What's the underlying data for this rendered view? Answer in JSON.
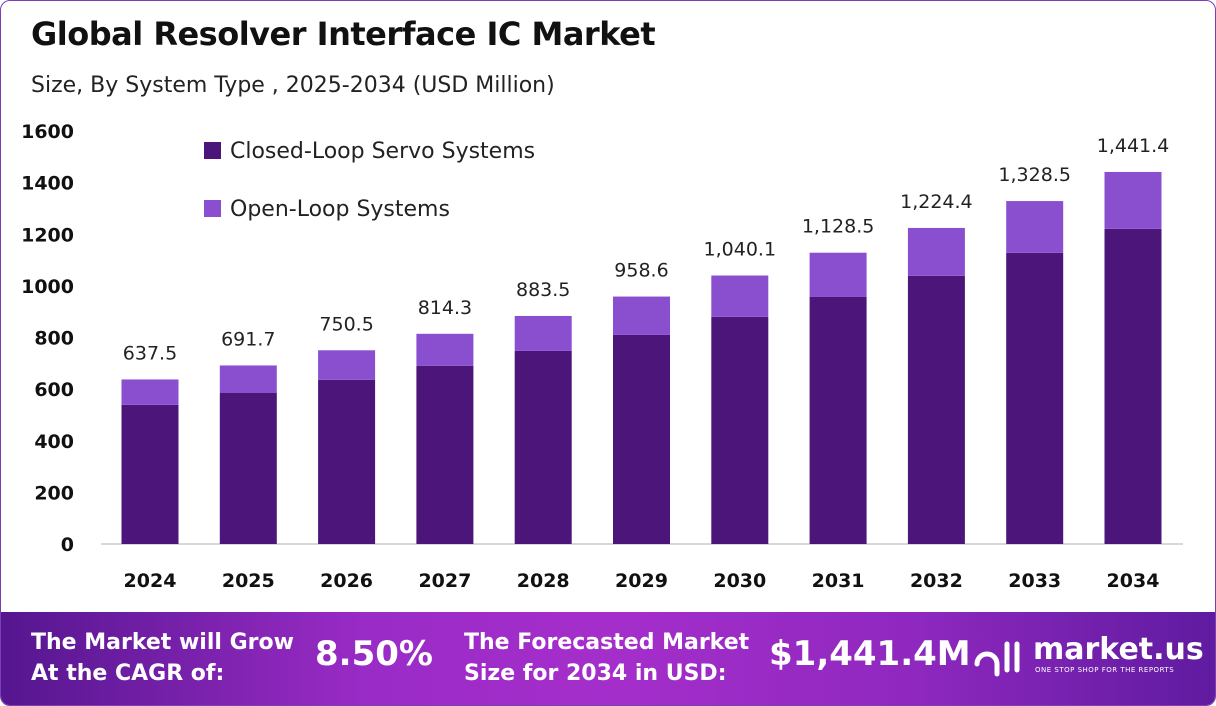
{
  "chart_data": {
    "type": "bar",
    "stacked": true,
    "title": "Global Resolver Interface IC Market",
    "subtitle": "Size, By System Type , 2025-2034 (USD Million)",
    "categories": [
      "2024",
      "2025",
      "2026",
      "2027",
      "2028",
      "2029",
      "2030",
      "2031",
      "2032",
      "2033",
      "2034"
    ],
    "series": [
      {
        "name": "Closed-Loop Servo Systems",
        "color": "#4b1579",
        "values": [
          539,
          585,
          636,
          690,
          748,
          810,
          880,
          957,
          1039,
          1128,
          1221
        ]
      },
      {
        "name": "Open-Loop Systems",
        "color": "#8a4fcf",
        "values": [
          98.5,
          106.7,
          114.5,
          124.3,
          135.5,
          148.6,
          160.1,
          171.5,
          185.4,
          200.5,
          220.4
        ]
      }
    ],
    "totals": [
      637.5,
      691.7,
      750.5,
      814.3,
      883.5,
      958.6,
      1040.1,
      1128.5,
      1224.4,
      1328.5,
      1441.4
    ],
    "total_labels": [
      "637.5",
      "691.7",
      "750.5",
      "814.3",
      "883.5",
      "958.6",
      "1,040.1",
      "1,128.5",
      "1,224.4",
      "1,328.5",
      "1,441.4"
    ],
    "ylim": [
      0,
      1600
    ],
    "yticks": [
      0,
      200,
      400,
      600,
      800,
      1000,
      1200,
      1400,
      1600
    ],
    "grid": false,
    "legend_position": "top-left"
  },
  "banner": {
    "cagr_label_1": "The Market will Grow",
    "cagr_label_2": "At the CAGR of:",
    "cagr_value": "8.50%",
    "forecast_label_1": "The Forecasted Market",
    "forecast_label_2": "Size for 2034 in USD:",
    "forecast_value": "$1,441.4M",
    "logo_name": "market.us",
    "logo_tagline": "ONE STOP SHOP FOR THE REPORTS"
  }
}
